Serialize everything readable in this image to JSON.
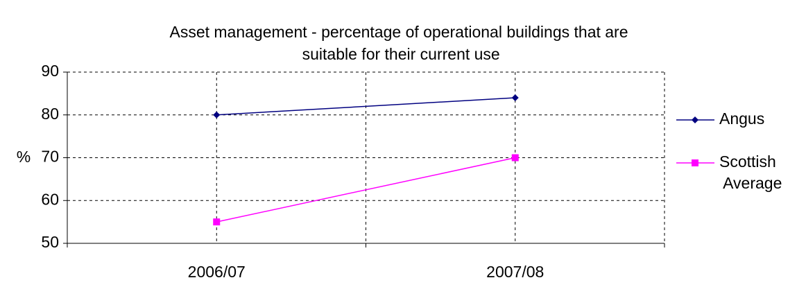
{
  "chart_data": {
    "type": "line",
    "title": "Asset management - percentage of operational buildings that are suitable for their current use",
    "y_label": "%",
    "categories": [
      "2006/07",
      "2007/08"
    ],
    "series": [
      {
        "name": "Angus",
        "color": "#000080",
        "marker": "diamond",
        "values": [
          80,
          84
        ]
      },
      {
        "name": "Scottish Average",
        "color": "#ff00ff",
        "marker": "square",
        "values": [
          55,
          70
        ]
      }
    ],
    "ylim": [
      50,
      90
    ],
    "yticks": [
      50,
      60,
      70,
      80,
      90
    ],
    "grid": true,
    "legend": "right"
  }
}
